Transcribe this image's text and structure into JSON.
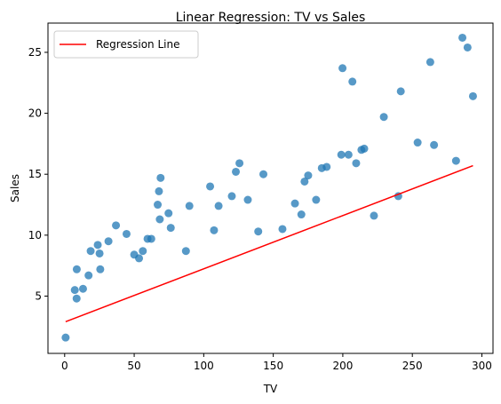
{
  "chart_data": {
    "type": "scatter",
    "title": "Linear Regression: TV vs Sales",
    "xlabel": "TV",
    "ylabel": "Sales",
    "xlim": [
      -12,
      308
    ],
    "ylim": [
      0.3,
      27.4
    ],
    "xticks": [
      0,
      50,
      100,
      150,
      200,
      250,
      300
    ],
    "yticks": [
      5,
      10,
      15,
      20,
      25
    ],
    "grid": false,
    "legend": {
      "position": "top-left",
      "entries": [
        "Regression Line"
      ]
    },
    "colors": {
      "points": "#1f77b4",
      "line": "#ff0000"
    },
    "scatter": {
      "x": [
        0.7,
        7.3,
        8.6,
        8.7,
        13.2,
        17.2,
        18.7,
        23.8,
        25.1,
        25.6,
        31.5,
        36.9,
        44.5,
        50.0,
        53.5,
        56.2,
        59.6,
        62.3,
        66.9,
        67.8,
        68.4,
        69.0,
        74.7,
        76.3,
        87.2,
        89.7,
        104.6,
        107.4,
        110.7,
        120.2,
        123.1,
        125.7,
        131.7,
        139.2,
        142.9,
        156.6,
        165.6,
        170.2,
        172.5,
        175.1,
        180.8,
        184.9,
        188.4,
        198.9,
        199.8,
        204.1,
        206.9,
        209.6,
        213.4,
        215.4,
        222.4,
        229.5,
        239.9,
        241.7,
        253.8,
        262.9,
        265.6,
        281.4,
        286.0,
        289.7,
        293.6
      ],
      "y": [
        1.6,
        5.5,
        4.8,
        7.2,
        5.6,
        6.7,
        8.7,
        9.2,
        8.5,
        7.2,
        9.5,
        10.8,
        10.1,
        8.4,
        8.1,
        8.7,
        9.7,
        9.7,
        12.5,
        13.6,
        11.3,
        14.7,
        11.8,
        10.6,
        8.7,
        12.4,
        14.0,
        10.4,
        12.4,
        13.2,
        15.2,
        15.9,
        12.9,
        10.3,
        15.0,
        10.5,
        12.6,
        11.7,
        14.4,
        14.9,
        12.9,
        15.5,
        15.6,
        16.6,
        23.7,
        16.6,
        22.6,
        15.9,
        17.0,
        17.1,
        11.6,
        19.7,
        13.2,
        21.8,
        17.6,
        24.2,
        17.4,
        16.1,
        26.2,
        25.4,
        21.4
      ]
    },
    "regression_line": {
      "name": "Regression Line",
      "x": [
        0.7,
        293.6
      ],
      "y": [
        2.9,
        15.7
      ]
    }
  }
}
